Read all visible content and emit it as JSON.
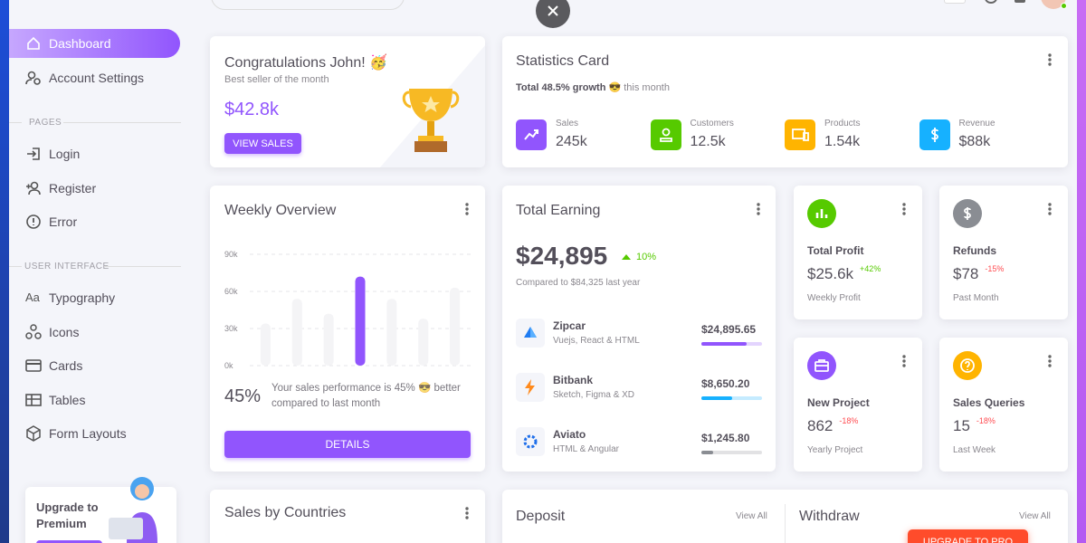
{
  "sidebar": {
    "nav": [
      "Dashboard",
      "Account Settings"
    ],
    "sections": [
      {
        "title": "PAGES",
        "items": [
          "Login",
          "Register",
          "Error"
        ]
      },
      {
        "title": "USER INTERFACE",
        "items": [
          "Typography",
          "Icons",
          "Cards",
          "Tables",
          "Form Layouts"
        ]
      }
    ],
    "typography_icon": "Aa",
    "upgrade": "Upgrade to Premium"
  },
  "congrats": {
    "title": "Congratulations John! 🥳",
    "subtitle": "Best seller of the month",
    "amount": "$42.8k",
    "button": "VIEW SALES"
  },
  "stats": {
    "title": "Statistics Card",
    "growth": "Total 48.5% growth 😎",
    "period": "this month",
    "items": [
      {
        "label": "Sales",
        "value": "245k",
        "color": "#9155fd"
      },
      {
        "label": "Customers",
        "value": "12.5k",
        "color": "#56ca00"
      },
      {
        "label": "Products",
        "value": "1.54k",
        "color": "#ffb400"
      },
      {
        "label": "Revenue",
        "value": "$88k",
        "color": "#16b1ff"
      }
    ]
  },
  "weekly": {
    "title": "Weekly Overview",
    "percent": "45%",
    "description": "Your sales performance is 45% 😎 better compared to last month",
    "button": "DETAILS"
  },
  "chart_data": {
    "type": "bar",
    "categories": [
      null,
      null,
      null,
      null,
      null,
      null,
      null
    ],
    "values": [
      34000,
      54000,
      42000,
      72000,
      54000,
      38000,
      63000
    ],
    "colors": [
      "#f4f4f6",
      "#f4f4f6",
      "#f4f4f6",
      "#9155fd",
      "#f4f4f6",
      "#f4f4f6",
      "#f4f4f6"
    ],
    "ylim": [
      0,
      90000
    ],
    "yticks": [
      {
        "value": 0,
        "label": "0k"
      },
      {
        "value": 30000,
        "label": "30k"
      },
      {
        "value": 60000,
        "label": "60k"
      },
      {
        "value": 90000,
        "label": "90k"
      }
    ],
    "grid": true
  },
  "earning": {
    "title": "Total Earning",
    "amount": "$24,895",
    "change": "10%",
    "compared": "Compared to $84,325 last year",
    "items": [
      {
        "name": "Zipcar",
        "tech": "Vuejs, React & HTML",
        "amount": "$24,895.65",
        "progress": 75,
        "color": "#9155fd"
      },
      {
        "name": "Bitbank",
        "tech": "Sketch, Figma & XD",
        "amount": "$8,650.20",
        "progress": 50,
        "color": "#16b1ff"
      },
      {
        "name": "Aviato",
        "tech": "HTML & Angular",
        "amount": "$1,245.80",
        "progress": 20,
        "color": "#8a8d93"
      }
    ]
  },
  "small_cards": [
    {
      "title": "Total Profit",
      "value": "$25.6k",
      "change": "+42%",
      "caption": "Weekly Profit",
      "color": "#56ca00"
    },
    {
      "title": "Refunds",
      "value": "$78",
      "change": "-15%",
      "caption": "Past Month",
      "color": "#8a8d93"
    },
    {
      "title": "New Project",
      "value": "862",
      "change": "-18%",
      "caption": "Yearly Project",
      "color": "#9155fd"
    },
    {
      "title": "Sales Queries",
      "value": "15",
      "change": "-18%",
      "caption": "Last Week",
      "color": "#ffb400"
    }
  ],
  "bottom": {
    "countries": "Sales by Countries",
    "deposit": "Deposit",
    "withdraw": "Withdraw",
    "view_all": "View All",
    "upgrade_pro": "UPGRADE TO PRO"
  }
}
